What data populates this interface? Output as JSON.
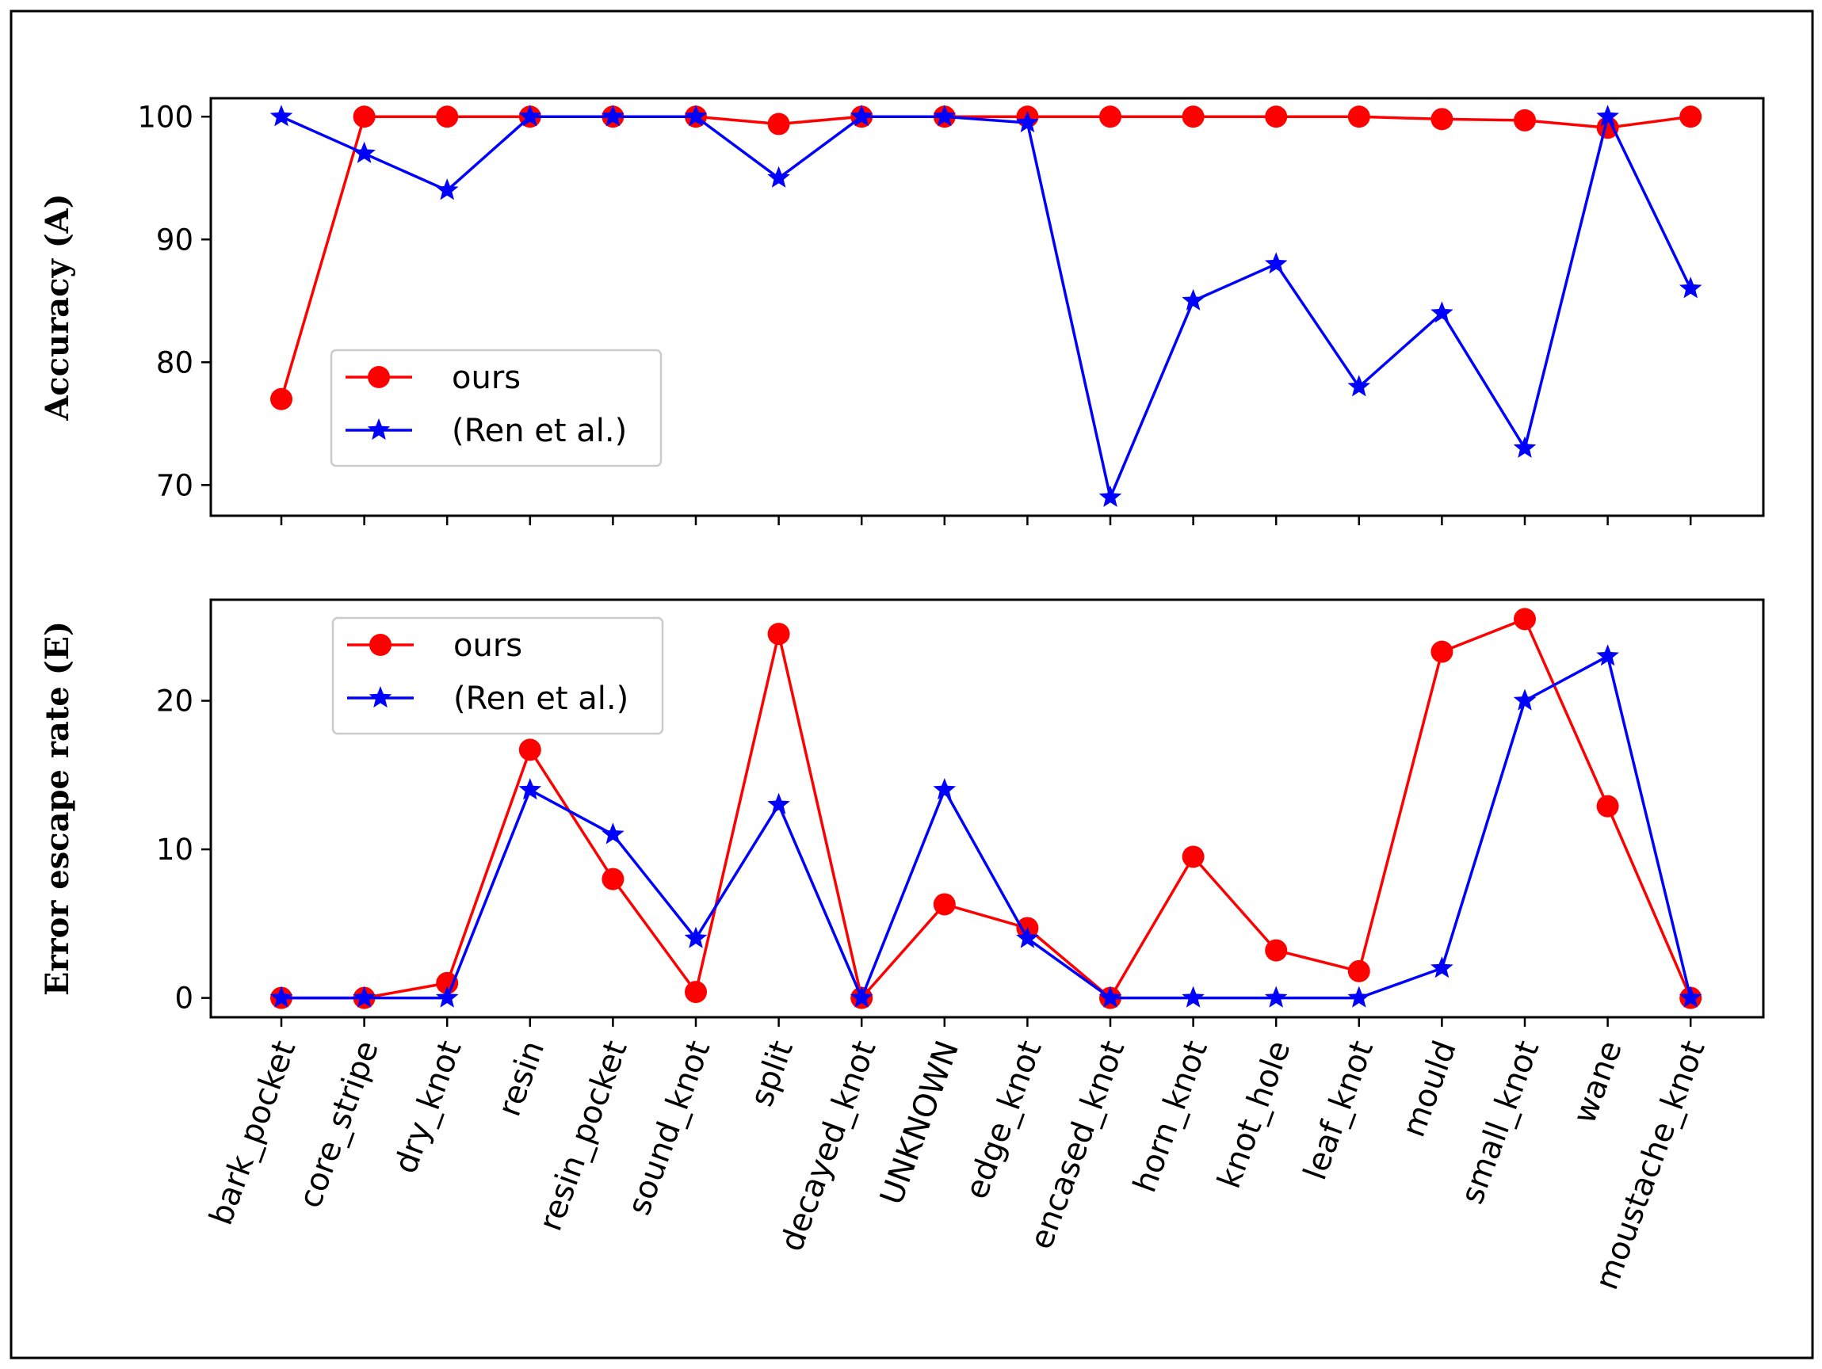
{
  "chart_data": [
    {
      "type": "line",
      "ylabel": "Accuracy (A)",
      "ylim": [
        67.5,
        101.5
      ],
      "yticks": [
        70,
        80,
        90,
        100
      ],
      "categories": [
        "bark_pocket",
        "core_stripe",
        "dry_knot",
        "resin",
        "resin_pocket",
        "sound_knot",
        "split",
        "decayed_knot",
        "UNKNOWN",
        "edge_knot",
        "encased_knot",
        "horn_knot",
        "knot_hole",
        "leaf_knot",
        "mould",
        "small_knot",
        "wane",
        "moustache_knot"
      ],
      "show_xticklabels": false,
      "legend_location": "center-left",
      "series": [
        {
          "name": "ours",
          "color": "#ff0000",
          "marker": "circle",
          "values": [
            77,
            100,
            100,
            100,
            100,
            100,
            99.4,
            100,
            100,
            100,
            100,
            100,
            100,
            100,
            99.8,
            99.7,
            99.1,
            100
          ]
        },
        {
          "name": "(Ren et al.)",
          "color": "#0000ff",
          "marker": "star",
          "values": [
            100,
            97,
            94,
            100,
            100,
            100,
            95,
            100,
            100,
            99.5,
            69,
            85,
            88,
            78,
            84,
            73,
            100,
            86
          ]
        }
      ]
    },
    {
      "type": "line",
      "ylabel": "Error escape rate (E)",
      "ylim": [
        -1.3,
        26.8
      ],
      "yticks": [
        0,
        10,
        20
      ],
      "categories": [
        "bark_pocket",
        "core_stripe",
        "dry_knot",
        "resin",
        "resin_pocket",
        "sound_knot",
        "split",
        "decayed_knot",
        "UNKNOWN",
        "edge_knot",
        "encased_knot",
        "horn_knot",
        "knot_hole",
        "leaf_knot",
        "mould",
        "small_knot",
        "wane",
        "moustache_knot"
      ],
      "show_xticklabels": true,
      "legend_location": "upper-left",
      "series": [
        {
          "name": "ours",
          "color": "#ff0000",
          "marker": "circle",
          "values": [
            0,
            0,
            1,
            16.7,
            8,
            0.4,
            24.5,
            0,
            6.3,
            4.7,
            0,
            9.5,
            3.2,
            1.8,
            23.3,
            25.5,
            12.9,
            0
          ]
        },
        {
          "name": "(Ren et al.)",
          "color": "#0000ff",
          "marker": "star",
          "values": [
            0,
            0,
            0,
            14,
            11,
            4,
            13,
            0,
            14,
            4,
            0,
            0,
            0,
            0,
            2,
            20,
            23,
            0
          ]
        }
      ]
    }
  ]
}
